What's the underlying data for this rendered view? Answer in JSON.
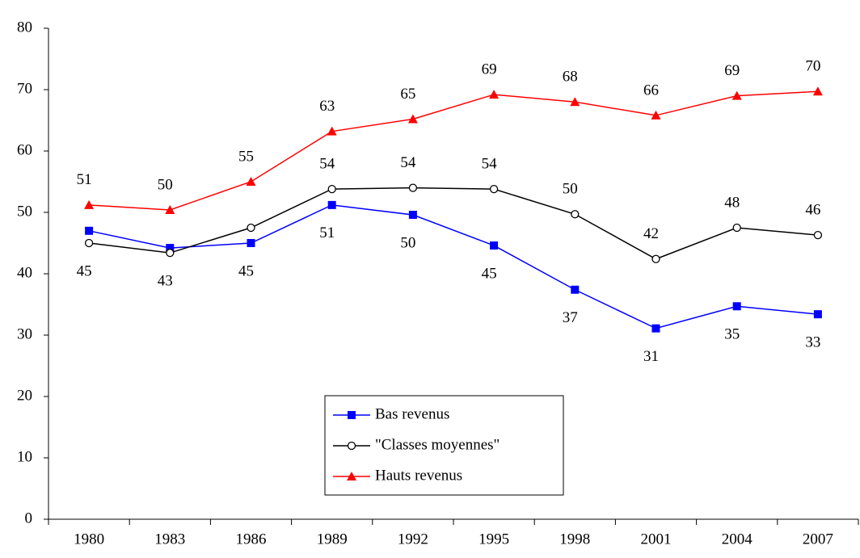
{
  "chart_data": {
    "type": "line",
    "categories": [
      "1980",
      "1983",
      "1986",
      "1989",
      "1992",
      "1995",
      "1998",
      "2001",
      "2004",
      "2007"
    ],
    "series": [
      {
        "name": "Bas revenus",
        "color": "#0000ff",
        "marker": "square",
        "values": [
          47,
          44.2,
          45,
          51.2,
          49.6,
          44.6,
          37.4,
          31.1,
          34.7,
          33.4
        ],
        "value_labels": [
          null,
          null,
          "45",
          "51",
          "50",
          "45",
          "37",
          "31",
          "35",
          "33"
        ]
      },
      {
        "name": "\"Classes moyennes\"",
        "color": "#000000",
        "marker": "circle",
        "values": [
          45,
          43.4,
          47.5,
          53.8,
          54,
          53.8,
          49.7,
          42.4,
          47.5,
          46.3
        ],
        "value_labels": [
          "45",
          "43",
          null,
          "54",
          "54",
          "54",
          "50",
          "42",
          "48",
          "46"
        ]
      },
      {
        "name": "Hauts revenus",
        "color": "#ff0000",
        "marker": "triangle",
        "values": [
          51.2,
          50.4,
          55,
          63.2,
          65.2,
          69.2,
          68,
          65.8,
          69,
          69.7
        ],
        "value_labels": [
          "51",
          "50",
          "55",
          "63",
          "65",
          "69",
          "68",
          "66",
          "69",
          "70"
        ]
      }
    ],
    "ylim": [
      0,
      80
    ],
    "yticks": [
      0,
      10,
      20,
      30,
      40,
      50,
      60,
      70,
      80
    ],
    "grid": false,
    "legend": "bottom-center"
  }
}
